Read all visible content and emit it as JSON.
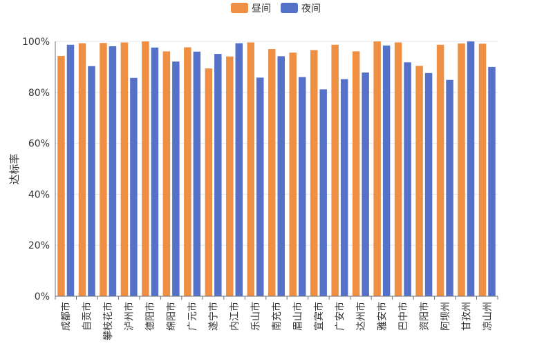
{
  "chart_data": {
    "type": "bar",
    "title": "",
    "xlabel": "",
    "ylabel": "达标率",
    "ylim": [
      0,
      100
    ],
    "yticks": [
      "0%",
      "20%",
      "40%",
      "60%",
      "80%",
      "100%"
    ],
    "legend_position": "top-center",
    "categories": [
      "成都市",
      "自贡市",
      "攀枝花市",
      "泸州市",
      "德阳市",
      "绵阳市",
      "广元市",
      "遂宁市",
      "内江市",
      "乐山市",
      "南充市",
      "眉山市",
      "宜宾市",
      "广安市",
      "达州市",
      "雅安市",
      "巴中市",
      "资阳市",
      "阿坝州",
      "甘孜州",
      "凉山州"
    ],
    "series": [
      {
        "name": "昼间",
        "color": "#ee8f43",
        "values": [
          94.3,
          99.3,
          99.4,
          99.6,
          100,
          96.1,
          97.7,
          89.4,
          94.1,
          99.6,
          97.0,
          95.6,
          96.6,
          98.7,
          96.1,
          100,
          99.6,
          90.4,
          98.7,
          99.2,
          99.1
        ]
      },
      {
        "name": "夜间",
        "color": "#5672c8",
        "values": [
          98.7,
          90.3,
          98.1,
          85.7,
          97.6,
          92.1,
          96.0,
          95.1,
          99.3,
          85.8,
          94.2,
          86.0,
          81.2,
          85.2,
          87.8,
          98.4,
          91.8,
          87.6,
          84.9,
          100,
          90.0
        ]
      }
    ]
  }
}
